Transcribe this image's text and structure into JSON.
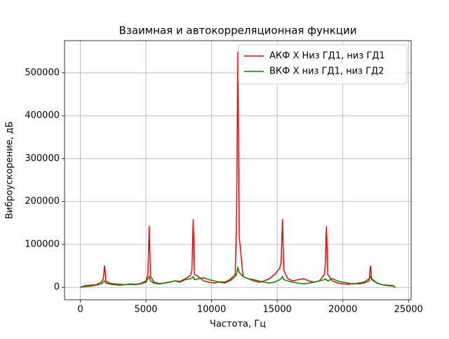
{
  "chart_data": {
    "type": "line",
    "title": "Взаимная и автокорреляционная функции",
    "xlabel": "Частота, Гц",
    "ylabel": "Виброускорение, дБ",
    "x": [
      0,
      400,
      800,
      1200,
      1600,
      1750,
      1850,
      1950,
      2200,
      2600,
      3000,
      3400,
      3800,
      4200,
      4600,
      5000,
      5150,
      5250,
      5350,
      5600,
      6000,
      6400,
      6800,
      7200,
      7600,
      8000,
      8400,
      8500,
      8600,
      8700,
      9000,
      9400,
      9800,
      10200,
      10600,
      11000,
      11400,
      11800,
      11900,
      12000,
      12100,
      12400,
      12800,
      13200,
      13600,
      14000,
      14400,
      14800,
      15200,
      15300,
      15400,
      15500,
      15800,
      16200,
      16600,
      17000,
      17400,
      17800,
      18200,
      18600,
      18650,
      18750,
      18850,
      19200,
      19600,
      20000,
      20400,
      20800,
      21200,
      21600,
      22000,
      22100,
      22200,
      22600,
      23000,
      23400,
      23800,
      24000
    ],
    "series": [
      {
        "name": "АКФ X Низ ГД1, низ ГД1",
        "color": "#ff0000",
        "values": [
          0,
          4000,
          5000,
          6000,
          12000,
          20000,
          50000,
          15000,
          10000,
          8000,
          7000,
          6000,
          8000,
          7000,
          9000,
          15000,
          30000,
          142000,
          25000,
          12000,
          9000,
          10000,
          12000,
          15000,
          14000,
          20000,
          28000,
          40000,
          158000,
          30000,
          25000,
          15000,
          12000,
          10000,
          13000,
          12000,
          18000,
          30000,
          150000,
          548000,
          120000,
          25000,
          20000,
          15000,
          12000,
          15000,
          20000,
          30000,
          45000,
          60000,
          158000,
          40000,
          20000,
          15000,
          18000,
          20000,
          15000,
          12000,
          15000,
          30000,
          45000,
          142000,
          30000,
          15000,
          10000,
          8000,
          7000,
          9000,
          8000,
          10000,
          15000,
          50000,
          20000,
          10000,
          6000,
          5000,
          4000,
          0
        ]
      },
      {
        "name": "ВКФ X низ ГД1, низ ГД2",
        "color": "#008000",
        "values": [
          0,
          2000,
          3000,
          5000,
          8000,
          12000,
          15000,
          10000,
          8000,
          6000,
          5000,
          6000,
          7000,
          6000,
          8000,
          12000,
          20000,
          25000,
          15000,
          10000,
          8000,
          10000,
          12000,
          15000,
          12000,
          18000,
          20000,
          22000,
          25000,
          18000,
          20000,
          22000,
          18000,
          15000,
          12000,
          10000,
          15000,
          25000,
          30000,
          47000,
          35000,
          25000,
          20000,
          18000,
          15000,
          12000,
          10000,
          12000,
          18000,
          20000,
          25000,
          18000,
          15000,
          12000,
          10000,
          8000,
          10000,
          12000,
          15000,
          18000,
          20000,
          18000,
          15000,
          20000,
          15000,
          12000,
          10000,
          8000,
          10000,
          12000,
          20000,
          25000,
          18000,
          10000,
          6000,
          4000,
          3000,
          0
        ]
      }
    ],
    "xlim": [
      -1200,
      25200
    ],
    "ylim": [
      -29000,
      575000
    ],
    "xticks": [
      0,
      5000,
      10000,
      15000,
      20000,
      25000
    ],
    "yticks": [
      0,
      100000,
      200000,
      300000,
      400000,
      500000
    ],
    "grid": true,
    "legend": "upper right"
  }
}
